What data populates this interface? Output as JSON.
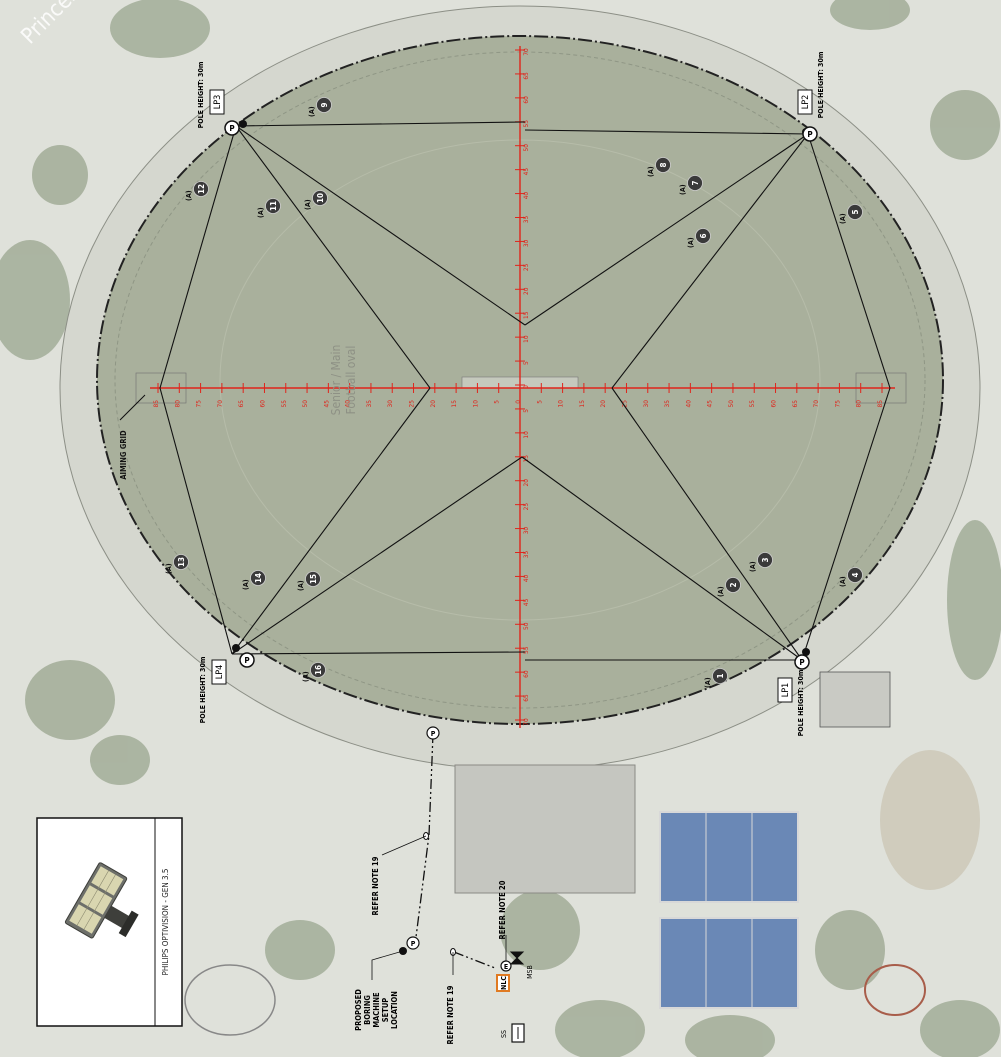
{
  "road_label": "Princes",
  "oval_label_line1": "Senior / Main",
  "oval_label_line2": "Football oval",
  "aiming_grid_label": "AIMING GRID",
  "poles": [
    {
      "id": "LP1",
      "height": "POLE HEIGHT: 30m",
      "symbol": "P"
    },
    {
      "id": "LP2",
      "height": "POLE HEIGHT: 30m",
      "symbol": "P"
    },
    {
      "id": "LP3",
      "height": "POLE HEIGHT: 30m",
      "symbol": "P"
    },
    {
      "id": "LP4",
      "height": "POLE HEIGHT: 30m",
      "symbol": "P"
    }
  ],
  "aim_markers": [
    {
      "num": "1",
      "tag": "(A)"
    },
    {
      "num": "2",
      "tag": "(A)"
    },
    {
      "num": "3",
      "tag": "(A)"
    },
    {
      "num": "4",
      "tag": "(A)"
    },
    {
      "num": "5",
      "tag": "(A)"
    },
    {
      "num": "6",
      "tag": "(A)"
    },
    {
      "num": "7",
      "tag": "(A)"
    },
    {
      "num": "8",
      "tag": "(A)"
    },
    {
      "num": "9",
      "tag": "(A)"
    },
    {
      "num": "10",
      "tag": "(A)"
    },
    {
      "num": "11",
      "tag": "(A)"
    },
    {
      "num": "12",
      "tag": "(A)"
    },
    {
      "num": "13",
      "tag": "(A)"
    },
    {
      "num": "14",
      "tag": "(A)"
    },
    {
      "num": "15",
      "tag": "(A)"
    },
    {
      "num": "16",
      "tag": "(A)"
    }
  ],
  "grid_ticks_horizontal": [
    "85",
    "80",
    "75",
    "70",
    "65",
    "60",
    "55",
    "50",
    "45",
    "40",
    "35",
    "30",
    "25",
    "20",
    "15",
    "10",
    "5",
    "0",
    "5",
    "10",
    "15",
    "20",
    "25",
    "30",
    "35",
    "40",
    "45",
    "50",
    "55",
    "60",
    "65",
    "70",
    "75",
    "80",
    "85"
  ],
  "grid_ticks_vertical": [
    "70",
    "65",
    "60",
    "55",
    "50",
    "45",
    "40",
    "35",
    "30",
    "25",
    "20",
    "15",
    "10",
    "5",
    "0",
    "5",
    "10",
    "15",
    "20",
    "25",
    "30",
    "35",
    "40",
    "45",
    "50",
    "55",
    "60",
    "65",
    "70"
  ],
  "notes": {
    "refer19_upper": "REFER NOTE 19",
    "refer19_lower": "REFER NOTE 19",
    "refer20": "REFER NOTE 20",
    "boring_lines": [
      "PROPOSED",
      "BORING",
      "MACHINE",
      "SETUP",
      "LOCATION"
    ]
  },
  "electrical": {
    "nlc": "NLC",
    "e": "E",
    "msb": "MSB",
    "ss": "SS",
    "pit": "P"
  },
  "legend": {
    "product": "PHILIPS OPTIVISION - GEN 3.5"
  },
  "colors": {
    "grid": "#e0241b",
    "lines": "#111111",
    "grass": "#a9b09c",
    "track": "#d9d9d2"
  }
}
